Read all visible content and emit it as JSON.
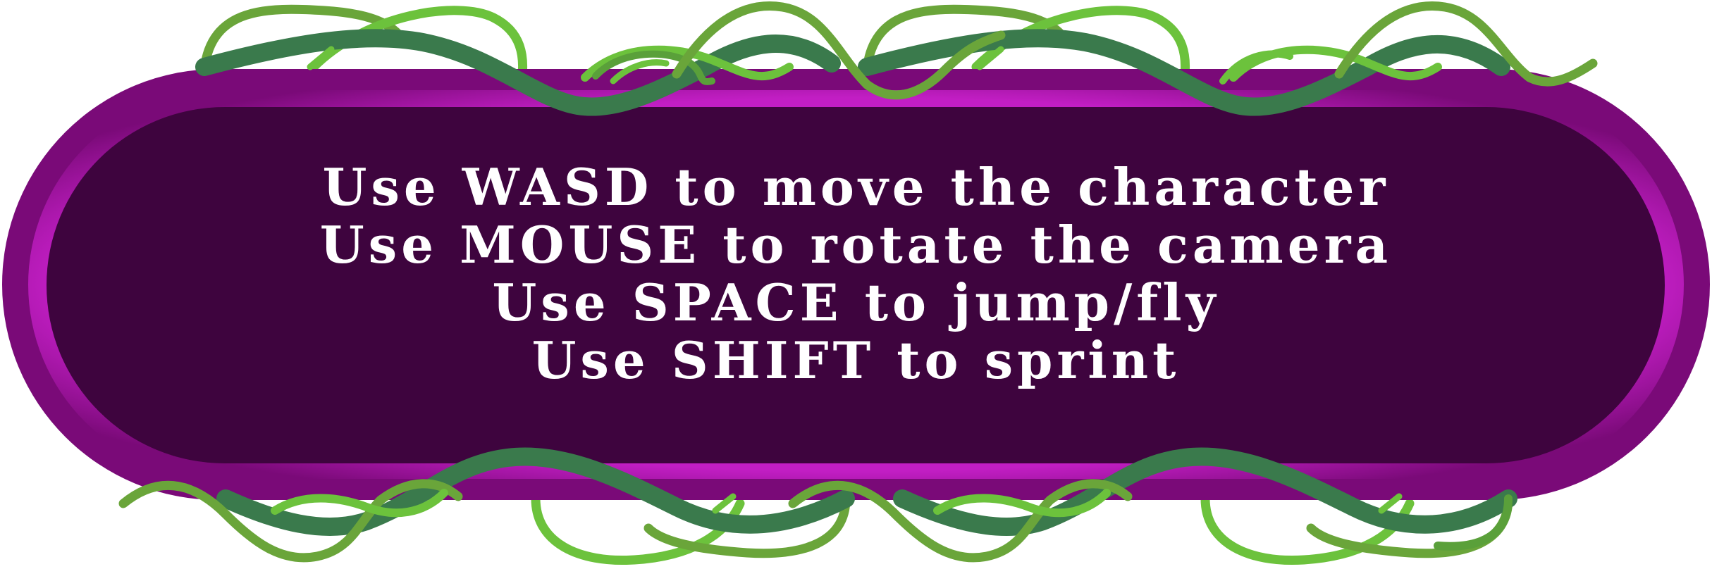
{
  "instructions": [
    "Use WASD to move the character",
    "Use MOUSE to rotate the camera",
    "Use SPACE to jump/fly",
    "Use SHIFT to sprint"
  ],
  "colors": {
    "panel_outer": "#7a0a78",
    "panel_rim": "#b01ab3",
    "panel_inner": "#3e043e",
    "vine_dark": "#3a7a4c",
    "vine_light": "#6cc23c",
    "vine_mid": "#5aa03a",
    "text": "#ffffff"
  },
  "decorations": {
    "vine_icon": "vine-icon"
  }
}
